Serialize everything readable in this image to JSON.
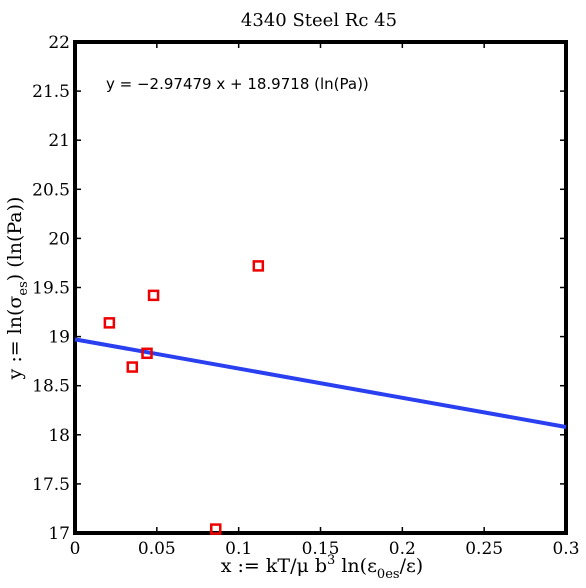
{
  "chart_data": {
    "type": "scatter",
    "title": "4340 Steel Rc 45",
    "xlabel": "x := kT/μ b³ ln(ε₀es/ε)",
    "xlabel_parts": {
      "main": "x := kT/μ b",
      "sup": "3",
      "mid": " ln(ε",
      "sub": "0es",
      "end": "/ε)"
    },
    "ylabel": "y := ln(σes) (ln(Pa))",
    "ylabel_parts": {
      "main": "y := ln(σ",
      "sub": "es",
      "end": ") (ln(Pa))"
    },
    "annotation": "y = −2.97479 x + 18.9718 (ln(Pa))",
    "xlim": [
      0,
      0.3
    ],
    "ylim": [
      17,
      22
    ],
    "xticks": [
      0,
      0.05,
      0.1,
      0.15,
      0.2,
      0.25,
      0.3
    ],
    "xtick_labels": [
      "0",
      "0.05",
      "0.1",
      "0.15",
      "0.2",
      "0.25",
      "0.3"
    ],
    "yticks": [
      17,
      17.5,
      18,
      18.5,
      19,
      19.5,
      20,
      20.5,
      21,
      21.5,
      22
    ],
    "ytick_labels": [
      "17",
      "17.5",
      "18",
      "18.5",
      "19",
      "19.5",
      "20",
      "20.5",
      "21",
      "21.5",
      "22"
    ],
    "grid": false,
    "series": [
      {
        "kind": "scatter",
        "marker": "square",
        "color": "#ee0000",
        "x": [
          0.021,
          0.035,
          0.044,
          0.048,
          0.086,
          0.112
        ],
        "y": [
          19.14,
          18.69,
          18.83,
          19.42,
          17.04,
          19.72
        ]
      },
      {
        "kind": "line",
        "color": "#2a40f0",
        "slope": -2.97479,
        "intercept": 18.9718,
        "x": [
          0,
          0.3
        ],
        "y": [
          18.9718,
          18.07936
        ]
      }
    ]
  }
}
